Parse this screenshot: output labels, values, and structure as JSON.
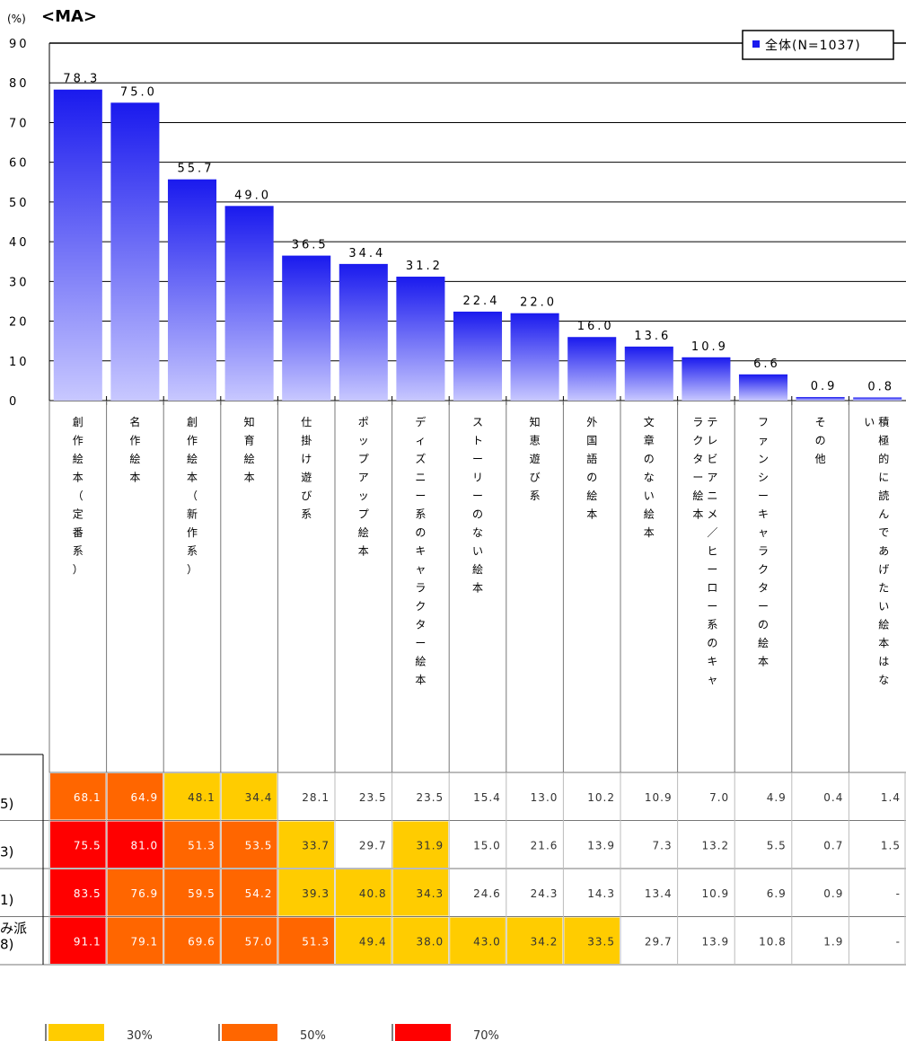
{
  "chart_data": {
    "type": "bar",
    "marker": "<MA>",
    "unit_label": "(%)",
    "ylim": [
      0,
      90
    ],
    "yticks": [
      "0",
      "10",
      "20",
      "30",
      "40",
      "50",
      "60",
      "70",
      "80",
      "90"
    ],
    "legend_position": "top-right",
    "series": [
      {
        "name": "全体(N=1037)",
        "color": "#1a1aee",
        "values": [
          78.3,
          75.0,
          55.7,
          49.0,
          36.5,
          34.4,
          31.2,
          22.4,
          22.0,
          16.0,
          13.6,
          10.9,
          6.6,
          0.9,
          0.8
        ],
        "value_labels": [
          "78.3",
          "75.0",
          "55.7",
          "49.0",
          "36.5",
          "34.4",
          "31.2",
          "22.4",
          "22.0",
          "16.0",
          "13.6",
          "10.9",
          "6.6",
          "0.9",
          "0.8"
        ]
      }
    ],
    "categories": [
      "創作絵本（定番系）",
      "名作絵本",
      "創作絵本（新作系）",
      "知育絵本",
      "仕掛け遊び系",
      "ポップアップ絵本",
      "ディズニー系のキャラクター絵本",
      "ストーリーのない絵本",
      "知恵遊び系",
      "外国語の絵本",
      "文章のない絵本",
      "テレビアニメ／ヒーロー系のキャラクター絵本",
      "ファンシーキャラクターの絵本",
      "その他",
      "積極的に読んであげたい絵本はない"
    ],
    "category_lines": [
      [
        "創作絵本（定番系）"
      ],
      [
        "名作絵本"
      ],
      [
        "創作絵本（新作系）"
      ],
      [
        "知育絵本"
      ],
      [
        "仕掛け遊び系"
      ],
      [
        "ポップアップ絵本"
      ],
      [
        "ディズニー系のキャラクター絵本"
      ],
      [
        "ストーリーのない絵本"
      ],
      [
        "知恵遊び系"
      ],
      [
        "外国語の絵本"
      ],
      [
        "文章のない絵本"
      ],
      [
        "テレビアニメ／ヒーロー系のキャ",
        "ラクター絵本"
      ],
      [
        "ファンシーキャラクターの絵本"
      ],
      [
        "その他"
      ],
      [
        "積極的に読んであげたい絵本はな",
        "い"
      ]
    ],
    "table": {
      "row_labels": [
        [
          "5)"
        ],
        [
          "3)"
        ],
        [
          "1)"
        ],
        [
          "み派",
          "8)"
        ]
      ],
      "rows": [
        [
          "68.1",
          "64.9",
          "48.1",
          "34.4",
          "28.1",
          "23.5",
          "23.5",
          "15.4",
          "13.0",
          "10.2",
          "10.9",
          "7.0",
          "4.9",
          "0.4",
          "1.4"
        ],
        [
          "75.5",
          "81.0",
          "51.3",
          "53.5",
          "33.7",
          "29.7",
          "31.9",
          "15.0",
          "21.6",
          "13.9",
          "7.3",
          "13.2",
          "5.5",
          "0.7",
          "1.5"
        ],
        [
          "83.5",
          "76.9",
          "59.5",
          "54.2",
          "39.3",
          "40.8",
          "34.3",
          "24.6",
          "24.3",
          "14.3",
          "13.4",
          "10.9",
          "6.9",
          "0.9",
          "-"
        ],
        [
          "91.1",
          "79.1",
          "69.6",
          "57.0",
          "51.3",
          "49.4",
          "38.0",
          "43.0",
          "34.2",
          "33.5",
          "29.7",
          "13.9",
          "10.8",
          "1.9",
          "-"
        ]
      ],
      "fills": [
        [
          "o",
          "o",
          "y",
          "y",
          "",
          "",
          "",
          "",
          "",
          "",
          "",
          "",
          "",
          "",
          ""
        ],
        [
          "r",
          "r",
          "o",
          "o",
          "y",
          "",
          "y",
          "",
          "",
          "",
          "",
          "",
          "",
          "",
          ""
        ],
        [
          "r",
          "o",
          "o",
          "o",
          "y",
          "y",
          "y",
          "",
          "",
          "",
          "",
          "",
          "",
          "",
          ""
        ],
        [
          "r",
          "o",
          "o",
          "o",
          "o",
          "y",
          "y",
          "y",
          "y",
          "y",
          "",
          "",
          "",
          "",
          ""
        ]
      ]
    },
    "highlight_legend": [
      {
        "label": "30%",
        "color": "#ffcc00"
      },
      {
        "label": "50%",
        "color": "#ff6600"
      },
      {
        "label": "70%",
        "color": "#ff0000"
      }
    ],
    "fill_colors": {
      "y": "#ffcc00",
      "o": "#ff6600",
      "r": "#ff0000"
    }
  }
}
